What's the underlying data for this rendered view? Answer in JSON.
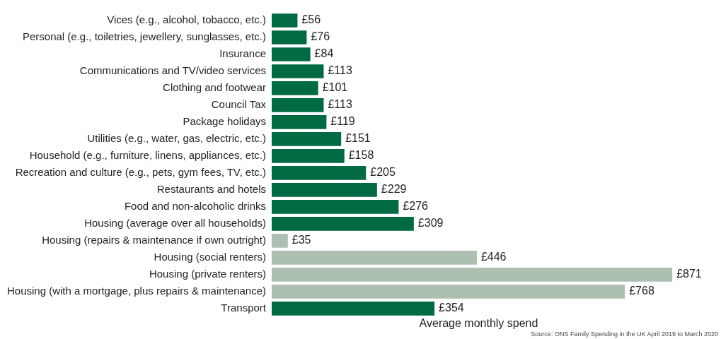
{
  "chart_data": {
    "type": "bar",
    "orientation": "horizontal",
    "xlabel": "Average monthly spend",
    "categories": [
      "Vices (e.g., alcohol, tobacco, etc.)",
      "Personal (e.g., toiletries, jewellery, sunglasses, etc.)",
      "Insurance",
      "Communications and TV/video services",
      "Clothing and footwear",
      "Council Tax",
      "Package holidays",
      "Utilities (e.g., water, gas, electric, etc.)",
      "Household (e.g., furniture, linens, appliances, etc.)",
      "Recreation and culture (e.g., pets, gym fees, TV, etc.)",
      "Restaurants and hotels",
      "Food and non-alcoholic drinks",
      "Housing (average over all households)",
      "Housing (repairs & maintenance if own outright)",
      "Housing (social renters)",
      "Housing (private renters)",
      "Housing (with a mortgage, plus repairs & maintenance)",
      "Transport"
    ],
    "values": [
      56,
      76,
      84,
      113,
      101,
      113,
      119,
      151,
      158,
      205,
      229,
      276,
      309,
      35,
      446,
      871,
      768,
      354
    ],
    "value_labels": [
      "£56",
      "£76",
      "£84",
      "£113",
      "£101",
      "£113",
      "£119",
      "£151",
      "£158",
      "£205",
      "£229",
      "£276",
      "£309",
      "£35",
      "£446",
      "£871",
      "£768",
      "£354"
    ],
    "colors": [
      "#006a43",
      "#006a43",
      "#006a43",
      "#006a43",
      "#006a43",
      "#006a43",
      "#006a43",
      "#006a43",
      "#006a43",
      "#006a43",
      "#006a43",
      "#006a43",
      "#006a43",
      "#adbfb0",
      "#adbfb0",
      "#adbfb0",
      "#adbfb0",
      "#006a43"
    ],
    "tick_labels": "y",
    "grid": false,
    "legend": false,
    "annotations": [
      "Source: ONS Family Spending in the UK April 2019 to March 2020"
    ]
  }
}
